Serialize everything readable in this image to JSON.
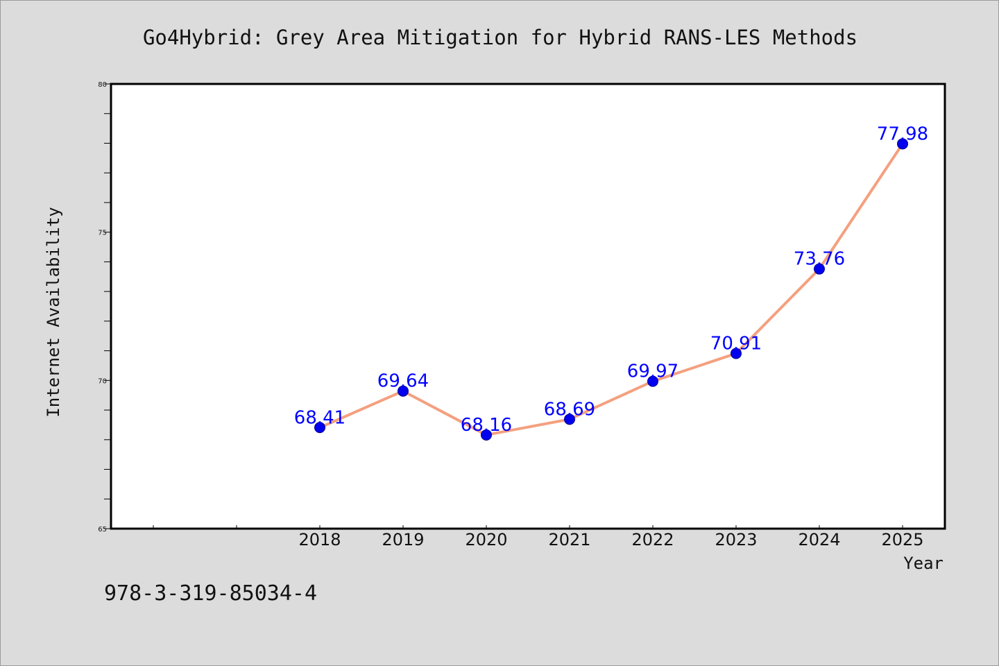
{
  "chart_data": {
    "type": "line",
    "title": "Go4Hybrid: Grey Area Mitigation for Hybrid RANS-LES Methods",
    "xlabel": "Year",
    "ylabel": "Internet Availability",
    "categories": [
      "2018",
      "2019",
      "2020",
      "2021",
      "2022",
      "2023",
      "2024",
      "2025"
    ],
    "series": [
      {
        "values": [
          68.41,
          69.64,
          68.16,
          68.69,
          69.97,
          70.91,
          73.76,
          77.98
        ],
        "labels": [
          "68.41",
          "69.64",
          "68.16",
          "68.69",
          "69.97",
          "70.91",
          "73.76",
          "77.98"
        ]
      }
    ],
    "ylim": [
      65,
      80
    ],
    "yticks": [
      65,
      70,
      75,
      80
    ],
    "ytick_labels": [
      "65",
      "70",
      "75",
      "80"
    ],
    "grid": false,
    "legend": "none",
    "colors": {
      "line": "#f4a07f",
      "marker": "#0000ee",
      "data_label": "#0000ff",
      "background": "#dcdcdc",
      "plot_background": "#ffffff"
    }
  },
  "footnote": "978-3-319-85034-4"
}
